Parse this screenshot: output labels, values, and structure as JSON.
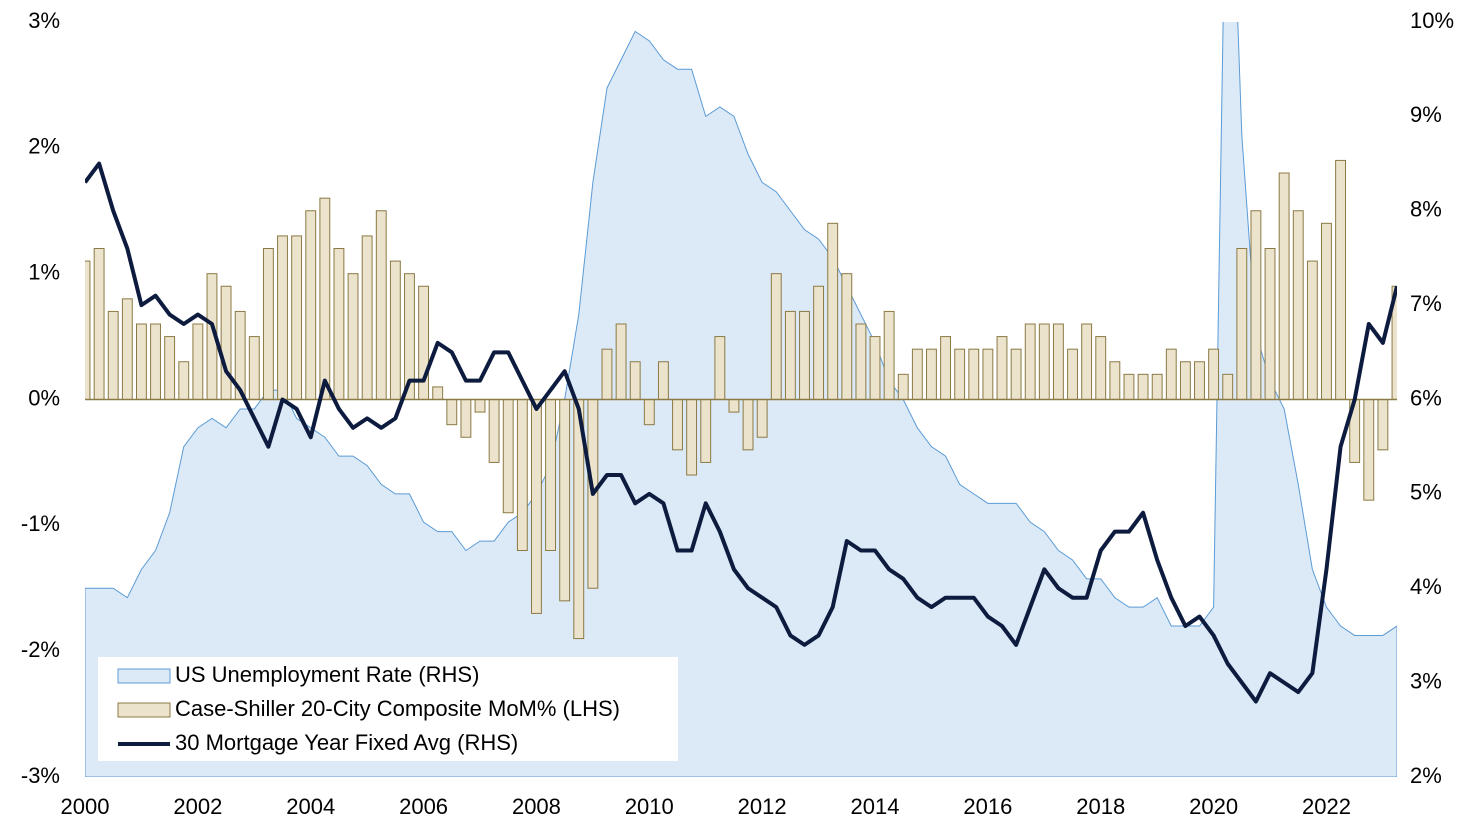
{
  "chart_data": {
    "type": "combo",
    "x": [
      2000,
      2000.25,
      2000.5,
      2000.75,
      2001,
      2001.25,
      2001.5,
      2001.75,
      2002,
      2002.25,
      2002.5,
      2002.75,
      2003,
      2003.25,
      2003.5,
      2003.75,
      2004,
      2004.25,
      2004.5,
      2004.75,
      2005,
      2005.25,
      2005.5,
      2005.75,
      2006,
      2006.25,
      2006.5,
      2006.75,
      2007,
      2007.25,
      2007.5,
      2007.75,
      2008,
      2008.25,
      2008.5,
      2008.75,
      2009,
      2009.25,
      2009.5,
      2009.75,
      2010,
      2010.25,
      2010.5,
      2010.75,
      2011,
      2011.25,
      2011.5,
      2011.75,
      2012,
      2012.25,
      2012.5,
      2012.75,
      2013,
      2013.25,
      2013.5,
      2013.75,
      2014,
      2014.25,
      2014.5,
      2014.75,
      2015,
      2015.25,
      2015.5,
      2015.75,
      2016,
      2016.25,
      2016.5,
      2016.75,
      2017,
      2017.25,
      2017.5,
      2017.75,
      2018,
      2018.25,
      2018.5,
      2018.75,
      2019,
      2019.25,
      2019.5,
      2019.75,
      2020,
      2020.25,
      2020.5,
      2020.75,
      2021,
      2021.25,
      2021.5,
      2021.75,
      2022,
      2022.25,
      2022.5,
      2022.75,
      2023,
      2023.25
    ],
    "series": [
      {
        "name": "US Unemployment Rate (RHS)",
        "type": "area",
        "axis": "y2",
        "color": "#dce9f7",
        "stroke": "#5b9bd5",
        "values": [
          4.0,
          4.0,
          4.0,
          3.9,
          4.2,
          4.4,
          4.8,
          5.5,
          5.7,
          5.8,
          5.7,
          5.9,
          5.9,
          6.1,
          6.1,
          5.8,
          5.7,
          5.6,
          5.4,
          5.4,
          5.3,
          5.1,
          5.0,
          5.0,
          4.7,
          4.6,
          4.6,
          4.4,
          4.5,
          4.5,
          4.7,
          4.8,
          5.0,
          5.3,
          6.0,
          6.9,
          8.3,
          9.3,
          9.6,
          9.9,
          9.8,
          9.6,
          9.5,
          9.5,
          9.0,
          9.1,
          9.0,
          8.6,
          8.3,
          8.2,
          8.0,
          7.8,
          7.7,
          7.5,
          7.2,
          6.9,
          6.6,
          6.2,
          6.0,
          5.7,
          5.5,
          5.4,
          5.1,
          5.0,
          4.9,
          4.9,
          4.9,
          4.7,
          4.6,
          4.4,
          4.3,
          4.1,
          4.1,
          3.9,
          3.8,
          3.8,
          3.9,
          3.6,
          3.6,
          3.6,
          3.8,
          13.0,
          8.8,
          6.7,
          6.2,
          5.9,
          5.1,
          4.2,
          3.8,
          3.6,
          3.5,
          3.5,
          3.5,
          3.6
        ]
      },
      {
        "name": "Case-Shiller 20-City Composite MoM% (LHS)",
        "type": "bar",
        "axis": "y",
        "color": "#ebe3cb",
        "stroke": "#8b7a45",
        "values": [
          1.1,
          1.2,
          0.7,
          0.8,
          0.6,
          0.6,
          0.5,
          0.3,
          0.6,
          1.0,
          0.9,
          0.7,
          0.5,
          1.2,
          1.3,
          1.3,
          1.5,
          1.6,
          1.2,
          1.0,
          1.3,
          1.5,
          1.1,
          1.0,
          0.9,
          0.1,
          -0.2,
          -0.3,
          -0.1,
          -0.5,
          -0.9,
          -1.2,
          -1.7,
          -1.2,
          -1.6,
          -1.9,
          -1.5,
          0.4,
          0.6,
          0.3,
          -0.2,
          0.3,
          -0.4,
          -0.6,
          -0.5,
          0.5,
          -0.1,
          -0.4,
          -0.3,
          1.0,
          0.7,
          0.7,
          0.9,
          1.4,
          1.0,
          0.6,
          0.5,
          0.7,
          0.2,
          0.4,
          0.4,
          0.5,
          0.4,
          0.4,
          0.4,
          0.5,
          0.4,
          0.6,
          0.6,
          0.6,
          0.4,
          0.6,
          0.5,
          0.3,
          0.2,
          0.2,
          0.2,
          0.4,
          0.3,
          0.3,
          0.4,
          0.2,
          1.2,
          1.5,
          1.2,
          1.8,
          1.5,
          1.1,
          1.4,
          1.9,
          -0.5,
          -0.8,
          -0.4,
          0.9
        ]
      },
      {
        "name": "30 Mortgage Year Fixed Avg (RHS)",
        "type": "line",
        "axis": "y2",
        "color": "#0d1b3e",
        "values": [
          8.3,
          8.5,
          8.0,
          7.6,
          7.0,
          7.1,
          6.9,
          6.8,
          6.9,
          6.8,
          6.3,
          6.1,
          5.8,
          5.5,
          6.0,
          5.9,
          5.6,
          6.2,
          5.9,
          5.7,
          5.8,
          5.7,
          5.8,
          6.2,
          6.2,
          6.6,
          6.5,
          6.2,
          6.2,
          6.5,
          6.5,
          6.2,
          5.9,
          6.1,
          6.3,
          5.9,
          5.0,
          5.2,
          5.2,
          4.9,
          5.0,
          4.9,
          4.4,
          4.4,
          4.9,
          4.6,
          4.2,
          4.0,
          3.9,
          3.8,
          3.5,
          3.4,
          3.5,
          3.8,
          4.5,
          4.4,
          4.4,
          4.2,
          4.1,
          3.9,
          3.8,
          3.9,
          3.9,
          3.9,
          3.7,
          3.6,
          3.4,
          3.8,
          4.2,
          4.0,
          3.9,
          3.9,
          4.4,
          4.6,
          4.6,
          4.8,
          4.3,
          3.9,
          3.6,
          3.7,
          3.5,
          3.2,
          3.0,
          2.8,
          3.1,
          3.0,
          2.9,
          3.1,
          4.2,
          5.5,
          6.0,
          6.8,
          6.6,
          7.2
        ]
      }
    ],
    "xlim": [
      2000,
      2023.25
    ],
    "xticks": [
      2000,
      2002,
      2004,
      2006,
      2008,
      2010,
      2012,
      2014,
      2016,
      2018,
      2020,
      2022
    ],
    "ylim": [
      -3,
      3
    ],
    "yticks": [
      {
        "value": -3,
        "label": "-3%"
      },
      {
        "value": -2,
        "label": "-2%"
      },
      {
        "value": -1,
        "label": "-1%"
      },
      {
        "value": 0,
        "label": "0%"
      },
      {
        "value": 1,
        "label": "1%"
      },
      {
        "value": 2,
        "label": "2%"
      },
      {
        "value": 3,
        "label": "3%"
      }
    ],
    "y2lim": [
      2,
      10
    ],
    "y2ticks": [
      {
        "value": 2,
        "label": "2%"
      },
      {
        "value": 3,
        "label": "3%"
      },
      {
        "value": 4,
        "label": "4%"
      },
      {
        "value": 5,
        "label": "5%"
      },
      {
        "value": 6,
        "label": "6%"
      },
      {
        "value": 7,
        "label": "7%"
      },
      {
        "value": 8,
        "label": "8%"
      },
      {
        "value": 9,
        "label": "9%"
      },
      {
        "value": 10,
        "label": "10%"
      }
    ],
    "legend": "lower left"
  }
}
